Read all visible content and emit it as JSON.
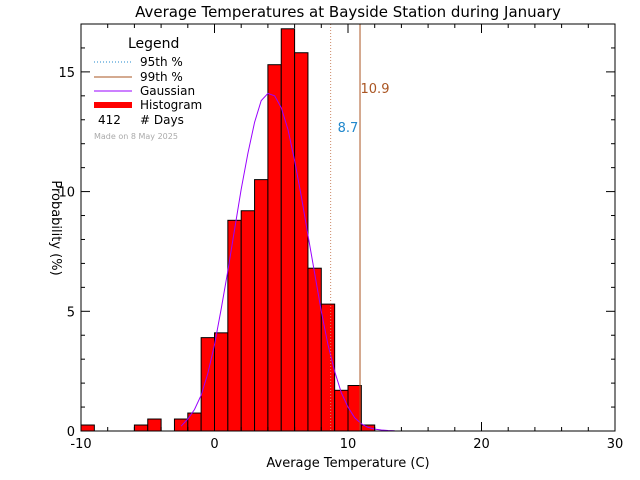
{
  "chart_data": {
    "type": "bar",
    "title": "Average Temperatures at Bayside Station during January",
    "xlabel": "Average Temperature (C)",
    "ylabel": "Probability (%)",
    "xlim": [
      -10,
      30
    ],
    "ylim": [
      0,
      17
    ],
    "x_ticks": [
      -10,
      0,
      10,
      20,
      30
    ],
    "y_ticks": [
      0,
      5,
      10,
      15
    ],
    "bin_width": 1,
    "histogram": {
      "bin_starts": [
        -10,
        -6,
        -5,
        -3,
        -2,
        -1,
        0,
        1,
        2,
        3,
        4,
        5,
        6,
        7,
        8,
        9,
        10,
        11
      ],
      "values": [
        0.25,
        0.25,
        0.5,
        0.5,
        0.75,
        3.9,
        4.1,
        8.8,
        9.2,
        10.5,
        15.3,
        16.8,
        15.8,
        6.8,
        5.3,
        1.7,
        1.9,
        0.25
      ],
      "color": "#ff0000"
    },
    "gaussian": {
      "x": [
        -2.5,
        -2,
        -1.5,
        -1,
        -0.5,
        0,
        0.5,
        1,
        1.5,
        2,
        2.5,
        3,
        3.5,
        4,
        4.5,
        5,
        5.5,
        6,
        6.5,
        7,
        7.5,
        8,
        8.5,
        9,
        9.5,
        10,
        10.5,
        11,
        11.5,
        12,
        12.5,
        13,
        13.5
      ],
      "y": [
        0.2,
        0.5,
        0.9,
        1.5,
        2.4,
        3.6,
        5.1,
        6.7,
        8.4,
        10.1,
        11.6,
        12.9,
        13.8,
        14.1,
        14.0,
        13.5,
        12.6,
        11.3,
        9.8,
        8.2,
        6.6,
        5.0,
        3.6,
        2.5,
        1.6,
        1.0,
        0.55,
        0.3,
        0.15,
        0.08,
        0.04,
        0.02,
        0.01
      ],
      "color": "#9900ff"
    },
    "p95": {
      "value": 8.7,
      "label": "8.7",
      "color": "#2288cc",
      "line_color": "#cc8866"
    },
    "p99": {
      "value": 10.9,
      "label": "10.9",
      "color": "#aa5522"
    },
    "legend": {
      "title": "Legend",
      "entries": [
        "95th %",
        "99th %",
        "Gaussian",
        "Histogram"
      ],
      "days_count": "412",
      "days_label": "# Days",
      "made_on": "Made on 8 May 2025"
    }
  }
}
